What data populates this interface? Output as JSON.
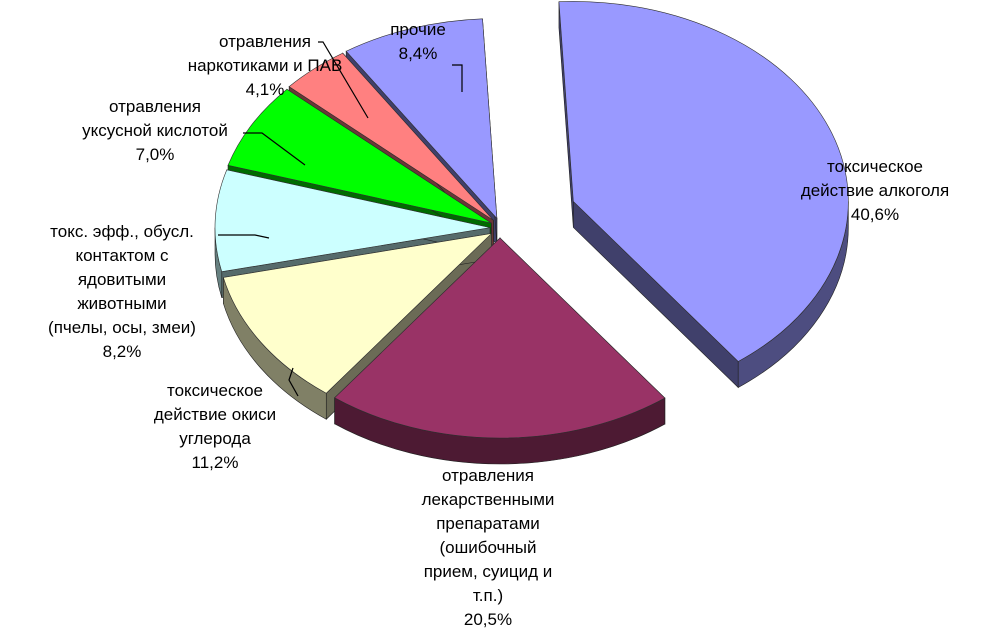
{
  "chart_data": {
    "type": "pie",
    "style": "3d-exploded",
    "title": "",
    "slices": [
      {
        "name": "toxic-alcohol",
        "label_lines": [
          "токсическое",
          "действие алкоголя"
        ],
        "value_text": "40,6%",
        "value": 40.6,
        "color": "#9999ff"
      },
      {
        "name": "drug-poisoning",
        "label_lines": [
          "отравления",
          "лекарственными",
          "препаратами",
          "(ошибочный",
          "прием, суицид и",
          "т.п.)"
        ],
        "value_text": "20,5%",
        "value": 20.5,
        "color": "#993366"
      },
      {
        "name": "carbon-monoxide",
        "label_lines": [
          "токсическое",
          "действие окиси",
          "углерода"
        ],
        "value_text": "11,2%",
        "value": 11.2,
        "color": "#ffffcc"
      },
      {
        "name": "venomous-animals",
        "label_lines": [
          "токс. эфф., обусл.",
          "контактом с",
          "ядовитыми",
          "животными",
          "(пчелы, осы, змеи)"
        ],
        "value_text": "8,2%",
        "value": 8.2,
        "color": "#ccffff"
      },
      {
        "name": "acetic-acid",
        "label_lines": [
          "отравления",
          "уксусной кислотой"
        ],
        "value_text": "7,0%",
        "value": 7.0,
        "color": "#00ff00"
      },
      {
        "name": "narcotics",
        "label_lines": [
          "отравления",
          "наркотиками и ПАВ"
        ],
        "value_text": "4,1%",
        "value": 4.1,
        "color": "#ff8080"
      },
      {
        "name": "other",
        "label_lines": [
          "прочие"
        ],
        "value_text": "8,4%",
        "value": 8.4,
        "color": "#9999ff"
      }
    ]
  }
}
